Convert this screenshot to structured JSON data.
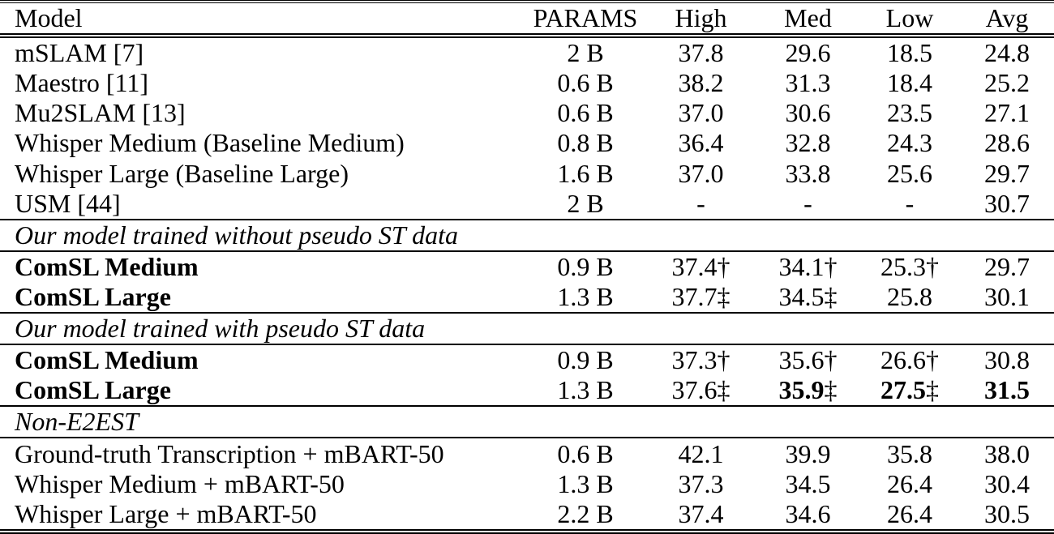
{
  "colors": {
    "text": "#000000",
    "background": "#ffffff",
    "rule": "#000000"
  },
  "table": {
    "columns": [
      {
        "key": "model",
        "label": "Model"
      },
      {
        "key": "params",
        "label": "PARAMS"
      },
      {
        "key": "high",
        "label": "High"
      },
      {
        "key": "med",
        "label": "Med"
      },
      {
        "key": "low",
        "label": "Low"
      },
      {
        "key": "avg",
        "label": "Avg"
      }
    ],
    "rows": [
      {
        "type": "data",
        "cells": [
          {
            "t": "mSLAM [7]"
          },
          {
            "t": "2 B"
          },
          {
            "t": "37.8"
          },
          {
            "t": "29.6"
          },
          {
            "t": "18.5"
          },
          {
            "t": "24.8"
          }
        ]
      },
      {
        "type": "data",
        "cells": [
          {
            "t": "Maestro [11]"
          },
          {
            "t": "0.6 B"
          },
          {
            "t": "38.2"
          },
          {
            "t": "31.3"
          },
          {
            "t": "18.4"
          },
          {
            "t": "25.2"
          }
        ]
      },
      {
        "type": "data",
        "cells": [
          {
            "t": "Mu2SLAM [13]"
          },
          {
            "t": "0.6 B"
          },
          {
            "t": "37.0"
          },
          {
            "t": "30.6"
          },
          {
            "t": "23.5"
          },
          {
            "t": "27.1"
          }
        ]
      },
      {
        "type": "data",
        "cells": [
          {
            "t": "Whisper Medium (Baseline Medium)"
          },
          {
            "t": "0.8 B"
          },
          {
            "t": "36.4"
          },
          {
            "t": "32.8"
          },
          {
            "t": "24.3"
          },
          {
            "t": "28.6"
          }
        ]
      },
      {
        "type": "data",
        "cells": [
          {
            "t": "Whisper Large (Baseline Large)"
          },
          {
            "t": "1.6 B"
          },
          {
            "t": "37.0"
          },
          {
            "t": "33.8"
          },
          {
            "t": "25.6"
          },
          {
            "t": "29.7"
          }
        ]
      },
      {
        "type": "data",
        "cells": [
          {
            "t": "USM [44]"
          },
          {
            "t": "2 B"
          },
          {
            "t": "-"
          },
          {
            "t": "-"
          },
          {
            "t": "-"
          },
          {
            "t": "30.7"
          }
        ]
      },
      {
        "type": "section",
        "label": "Our model trained without pseudo ST data"
      },
      {
        "type": "data",
        "cells": [
          {
            "t": "ComSL Medium",
            "b": true
          },
          {
            "t": "0.9 B"
          },
          {
            "t": "37.4",
            "sup": "†"
          },
          {
            "t": "34.1",
            "sup": "†"
          },
          {
            "t": "25.3",
            "sup": "†"
          },
          {
            "t": "29.7"
          }
        ]
      },
      {
        "type": "data",
        "cells": [
          {
            "t": "ComSL Large",
            "b": true
          },
          {
            "t": "1.3 B"
          },
          {
            "t": "37.7",
            "sup": "‡"
          },
          {
            "t": "34.5",
            "sup": "‡"
          },
          {
            "t": "25.8"
          },
          {
            "t": "30.1"
          }
        ]
      },
      {
        "type": "section",
        "label": "Our model trained with pseudo ST data"
      },
      {
        "type": "data",
        "cells": [
          {
            "t": "ComSL Medium",
            "b": true
          },
          {
            "t": "0.9 B"
          },
          {
            "t": "37.3",
            "sup": "†"
          },
          {
            "t": "35.6",
            "sup": "†"
          },
          {
            "t": "26.6",
            "sup": "†"
          },
          {
            "t": "30.8"
          }
        ]
      },
      {
        "type": "data",
        "cells": [
          {
            "t": "ComSL Large",
            "b": true
          },
          {
            "t": "1.3 B"
          },
          {
            "t": "37.6",
            "sup": "‡"
          },
          {
            "t": "35.9",
            "sup": "‡",
            "b": true
          },
          {
            "t": "27.5",
            "sup": "‡",
            "b": true
          },
          {
            "t": "31.5",
            "b": true
          }
        ]
      },
      {
        "type": "section",
        "label": "Non-E2EST"
      },
      {
        "type": "data",
        "cells": [
          {
            "t": "Ground-truth Transcription + mBART-50"
          },
          {
            "t": "0.6 B"
          },
          {
            "t": "42.1"
          },
          {
            "t": "39.9"
          },
          {
            "t": "35.8"
          },
          {
            "t": "38.0"
          }
        ]
      },
      {
        "type": "data",
        "cells": [
          {
            "t": "Whisper Medium + mBART-50"
          },
          {
            "t": "1.3 B"
          },
          {
            "t": "37.3"
          },
          {
            "t": "34.5"
          },
          {
            "t": "26.4"
          },
          {
            "t": "30.4"
          }
        ]
      },
      {
        "type": "data",
        "cells": [
          {
            "t": "Whisper Large + mBART-50"
          },
          {
            "t": "2.2 B"
          },
          {
            "t": "37.4"
          },
          {
            "t": "34.6"
          },
          {
            "t": "26.4"
          },
          {
            "t": "30.5"
          }
        ]
      }
    ]
  }
}
